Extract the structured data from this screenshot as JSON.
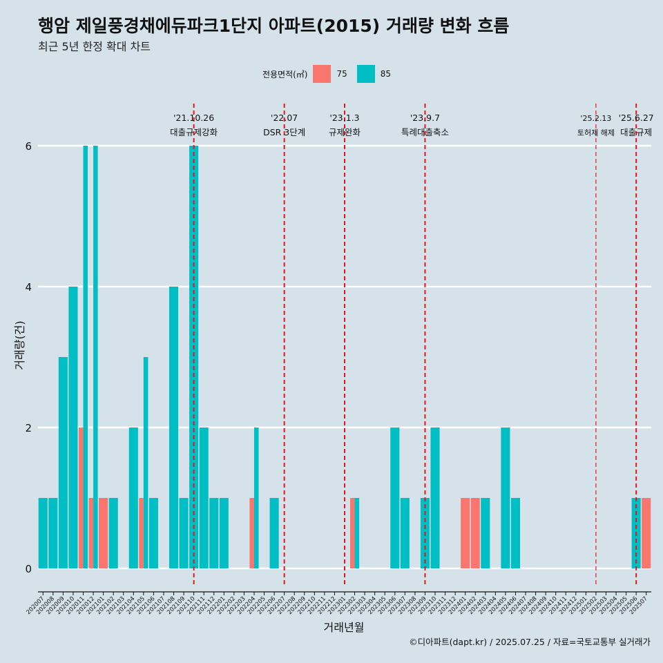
{
  "title": "행암 제일풍경채에듀파크1단지 아파트(2015) 거래량 변화 흐름",
  "subtitle": "최근 5년 한정 확대 차트",
  "caption": "©디아파트(dapt.kr) / 2025.07.25 / 자료=국토교통부 실거래가",
  "legend": {
    "title": "전용면적(㎡)",
    "items": [
      {
        "label": "75",
        "color": "#f8766d"
      },
      {
        "label": "85",
        "color": "#00bfc4"
      }
    ]
  },
  "chart_data": {
    "type": "bar",
    "title": "행암 제일풍경채에듀파크1단지 아파트(2015) 거래량 변화 흐름",
    "subtitle": "최근 5년 한정 확대 차트",
    "xlabel": "거래년월",
    "ylabel": "거래량(건)",
    "ylim": [
      0,
      6.2
    ],
    "yticks": [
      0,
      2,
      4,
      6
    ],
    "grid": "horizontal major lines only",
    "legend_position": "top",
    "categories": [
      "202007",
      "202008",
      "202009",
      "202010",
      "202011",
      "202012",
      "202101",
      "202102",
      "202103",
      "202104",
      "202105",
      "202106",
      "202107",
      "202108",
      "202109",
      "202110",
      "202111",
      "202112",
      "202201",
      "202202",
      "202203",
      "202204",
      "202205",
      "202206",
      "202207",
      "202208",
      "202209",
      "202210",
      "202211",
      "202212",
      "202301",
      "202302",
      "202303",
      "202304",
      "202305",
      "202306",
      "202307",
      "202308",
      "202309",
      "202310",
      "202311",
      "202312",
      "202401",
      "202402",
      "202403",
      "202404",
      "202405",
      "202406",
      "202407",
      "202408",
      "202409",
      "202410",
      "202411",
      "202412",
      "202501",
      "202502",
      "202503",
      "202504",
      "202505",
      "202506",
      "202507"
    ],
    "series": [
      {
        "name": "75",
        "color": "#f8766d",
        "values": [
          0,
          0,
          0,
          0,
          2,
          1,
          1,
          0,
          0,
          0,
          1,
          0,
          0,
          0,
          0,
          0,
          0,
          0,
          0,
          0,
          0,
          1,
          0,
          0,
          0,
          0,
          0,
          0,
          0,
          0,
          0,
          1,
          0,
          0,
          0,
          0,
          0,
          0,
          0,
          0,
          0,
          0,
          1,
          1,
          0,
          0,
          0,
          0,
          0,
          0,
          0,
          0,
          0,
          0,
          0,
          0,
          0,
          0,
          0,
          0,
          1
        ]
      },
      {
        "name": "85",
        "color": "#00bfc4",
        "values": [
          1,
          1,
          3,
          4,
          6,
          6,
          0,
          1,
          0,
          2,
          3,
          1,
          0,
          4,
          1,
          6,
          2,
          1,
          1,
          0,
          0,
          2,
          0,
          1,
          0,
          0,
          0,
          0,
          0,
          0,
          0,
          1,
          0,
          0,
          0,
          2,
          1,
          0,
          1,
          2,
          0,
          0,
          0,
          0,
          1,
          0,
          2,
          1,
          0,
          0,
          0,
          0,
          0,
          0,
          0,
          0,
          0,
          0,
          0,
          1,
          0
        ]
      }
    ],
    "annotations": [
      {
        "x": "202110",
        "date": "'21.10.26",
        "label": "대출규제강화"
      },
      {
        "x": "202207",
        "date": "'22.07",
        "label": "DSR 3단계"
      },
      {
        "x": "202301",
        "date": "'23.1.3",
        "label": "규제완화"
      },
      {
        "x": "202309",
        "date": "'23.9.7",
        "label": "특례대출축소"
      },
      {
        "x": "202502",
        "date": "'25.2.13",
        "label": "토허제 해제"
      },
      {
        "x": "202506",
        "date": "'25.6.27",
        "label": "대출규제"
      }
    ]
  }
}
